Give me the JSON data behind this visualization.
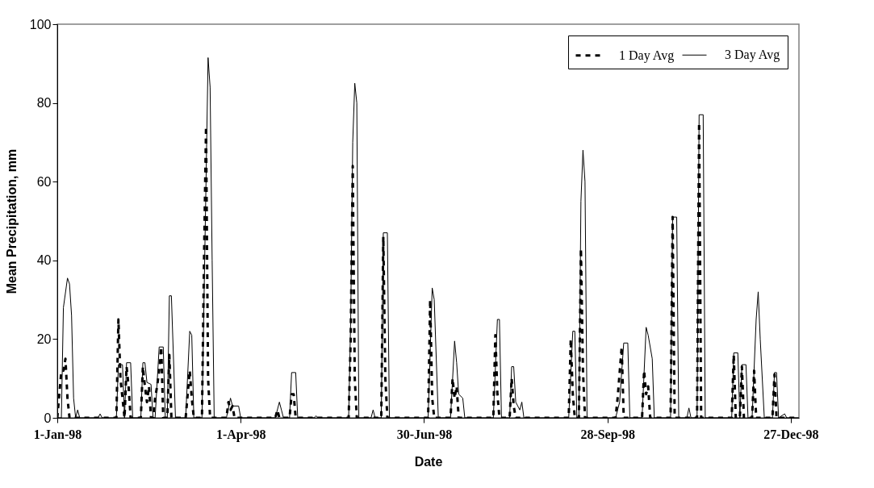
{
  "chart_data": {
    "type": "line",
    "xlabel": "Date",
    "ylabel": "Mean Precipitation, mm",
    "xlim": [
      "1998-01-01",
      "1998-12-31"
    ],
    "xticks": [
      {
        "value": "1998-01-01",
        "label": "1-Jan-98"
      },
      {
        "value": "1998-04-01",
        "label": "1-Apr-98"
      },
      {
        "value": "1998-06-30",
        "label": "30-Jun-98"
      },
      {
        "value": "1998-09-28",
        "label": "28-Sep-98"
      },
      {
        "value": "1998-12-27",
        "label": "27-Dec-98"
      }
    ],
    "ylim": [
      0,
      100
    ],
    "yticks": [
      0,
      20,
      40,
      60,
      80,
      100
    ],
    "grid": false,
    "legend": "top right",
    "series": [
      {
        "name": "1 Day Avg",
        "color": "#000000",
        "line_style": "dashed",
        "x": [
          "1998-01-01",
          "1998-01-03",
          "1998-01-04",
          "1998-01-05",
          "1998-01-06",
          "1998-01-07",
          "1998-01-30",
          "1998-01-31",
          "1998-02-01",
          "1998-02-02",
          "1998-02-03",
          "1998-02-04",
          "1998-02-05",
          "1998-02-06",
          "1998-02-11",
          "1998-02-12",
          "1998-02-13",
          "1998-02-14",
          "1998-02-15",
          "1998-02-16",
          "1998-02-17",
          "1998-02-18",
          "1998-02-19",
          "1998-02-20",
          "1998-02-21",
          "1998-02-22",
          "1998-02-24",
          "1998-02-25",
          "1998-02-26",
          "1998-03-05",
          "1998-03-06",
          "1998-03-07",
          "1998-03-08",
          "1998-03-09",
          "1998-03-13",
          "1998-03-14",
          "1998-03-15",
          "1998-03-16",
          "1998-03-17",
          "1998-03-25",
          "1998-03-26",
          "1998-03-27",
          "1998-03-28",
          "1998-03-29",
          "1998-04-18",
          "1998-04-19",
          "1998-04-20",
          "1998-04-25",
          "1998-04-26",
          "1998-04-27",
          "1998-04-28",
          "1998-05-24",
          "1998-05-25",
          "1998-05-26",
          "1998-05-27",
          "1998-05-28",
          "1998-06-09",
          "1998-06-10",
          "1998-06-11",
          "1998-06-12",
          "1998-07-02",
          "1998-07-03",
          "1998-07-04",
          "1998-07-05",
          "1998-07-13",
          "1998-07-14",
          "1998-07-15",
          "1998-07-16",
          "1998-07-17",
          "1998-08-03",
          "1998-08-04",
          "1998-08-05",
          "1998-08-06",
          "1998-08-11",
          "1998-08-12",
          "1998-08-13",
          "1998-08-14",
          "1998-09-09",
          "1998-09-10",
          "1998-09-11",
          "1998-09-12",
          "1998-09-14",
          "1998-09-15",
          "1998-09-16",
          "1998-09-17",
          "1998-10-02",
          "1998-10-03",
          "1998-10-05",
          "1998-10-06",
          "1998-10-15",
          "1998-10-16",
          "1998-10-17",
          "1998-10-18",
          "1998-10-19",
          "1998-10-29",
          "1998-10-30",
          "1998-10-31",
          "1998-11-11",
          "1998-11-12",
          "1998-11-13",
          "1998-11-28",
          "1998-11-29",
          "1998-11-30",
          "1998-12-02",
          "1998-12-03",
          "1998-12-04",
          "1998-12-08",
          "1998-12-09",
          "1998-12-10",
          "1998-12-18",
          "1998-12-19",
          "1998-12-20",
          "1998-12-31"
        ],
        "values": [
          0,
          12,
          12,
          15,
          5,
          0,
          0,
          25,
          10,
          5,
          0,
          13,
          8,
          0,
          0,
          13,
          8,
          4,
          8,
          0,
          0,
          5,
          8,
          12,
          18,
          0,
          0,
          16,
          0,
          0,
          6,
          12,
          5,
          0,
          0,
          40,
          74,
          10,
          0,
          0,
          4,
          2,
          3,
          0,
          0,
          2,
          0,
          0,
          6,
          6,
          0,
          0,
          20,
          64,
          10,
          0,
          0,
          46,
          10,
          0,
          0,
          30,
          5,
          0,
          0,
          10,
          5,
          8,
          0,
          0,
          21,
          6,
          0,
          0,
          10,
          3,
          0,
          0,
          20,
          6,
          0,
          0,
          43,
          12,
          0,
          0,
          5,
          18,
          0,
          0,
          12,
          6,
          8,
          0,
          0,
          51,
          0,
          0,
          75,
          0,
          0,
          16,
          0,
          0,
          13,
          0,
          0,
          12,
          0,
          0,
          11,
          0,
          0
        ]
      },
      {
        "name": "3 Day Avg",
        "color": "#000000",
        "line_style": "solid",
        "x": [
          "1998-01-01",
          "1998-01-03",
          "1998-01-04",
          "1998-01-06",
          "1998-01-07",
          "1998-01-08",
          "1998-01-09",
          "1998-01-10",
          "1998-01-11",
          "1998-01-12",
          "1998-01-21",
          "1998-01-22",
          "1998-01-23",
          "1998-01-30",
          "1998-01-31",
          "1998-02-02",
          "1998-02-03",
          "1998-02-04",
          "1998-02-06",
          "1998-02-07",
          "1998-02-11",
          "1998-02-12",
          "1998-02-13",
          "1998-02-14",
          "1998-02-16",
          "1998-02-17",
          "1998-02-18",
          "1998-02-20",
          "1998-02-22",
          "1998-02-23",
          "1998-02-24",
          "1998-02-25",
          "1998-02-26",
          "1998-02-28",
          "1998-03-05",
          "1998-03-07",
          "1998-03-08",
          "1998-03-09",
          "1998-03-13",
          "1998-03-14",
          "1998-03-15",
          "1998-03-16",
          "1998-03-17",
          "1998-03-18",
          "1998-03-19",
          "1998-03-25",
          "1998-03-27",
          "1998-03-28",
          "1998-03-31",
          "1998-04-01",
          "1998-04-18",
          "1998-04-20",
          "1998-04-21",
          "1998-04-22",
          "1998-04-25",
          "1998-04-26",
          "1998-04-28",
          "1998-04-29",
          "1998-05-07",
          "1998-05-08",
          "1998-05-09",
          "1998-05-24",
          "1998-05-25",
          "1998-05-26",
          "1998-05-27",
          "1998-05-28",
          "1998-05-29",
          "1998-06-04",
          "1998-06-05",
          "1998-06-06",
          "1998-06-09",
          "1998-06-10",
          "1998-06-12",
          "1998-06-13",
          "1998-07-02",
          "1998-07-04",
          "1998-07-05",
          "1998-07-07",
          "1998-07-13",
          "1998-07-15",
          "1998-07-16",
          "1998-07-17",
          "1998-07-19",
          "1998-07-20",
          "1998-08-03",
          "1998-08-05",
          "1998-08-06",
          "1998-08-07",
          "1998-08-11",
          "1998-08-12",
          "1998-08-13",
          "1998-08-14",
          "1998-08-16",
          "1998-08-17",
          "1998-08-18",
          "1998-09-09",
          "1998-09-11",
          "1998-09-12",
          "1998-09-13",
          "1998-09-14",
          "1998-09-15",
          "1998-09-16",
          "1998-09-17",
          "1998-09-18",
          "1998-10-02",
          "1998-10-04",
          "1998-10-06",
          "1998-10-08",
          "1998-10-09",
          "1998-10-15",
          "1998-10-17",
          "1998-10-18",
          "1998-10-20",
          "1998-10-21",
          "1998-10-29",
          "1998-10-30",
          "1998-11-01",
          "1998-11-02",
          "1998-11-06",
          "1998-11-07",
          "1998-11-08",
          "1998-11-11",
          "1998-11-12",
          "1998-11-14",
          "1998-11-15",
          "1998-11-28",
          "1998-11-29",
          "1998-12-01",
          "1998-12-02",
          "1998-12-03",
          "1998-12-05",
          "1998-12-06",
          "1998-12-08",
          "1998-12-10",
          "1998-12-11",
          "1998-12-12",
          "1998-12-14",
          "1998-12-18",
          "1998-12-19",
          "1998-12-20",
          "1998-12-21",
          "1998-12-24",
          "1998-12-25",
          "1998-12-31"
        ],
        "values": [
          0,
          0,
          28,
          35.5,
          34,
          26,
          5,
          0,
          2,
          0,
          0,
          1,
          0,
          0,
          13.5,
          13.5,
          0,
          14,
          14,
          0,
          0,
          14,
          14,
          9,
          8.5,
          0,
          0,
          18,
          18,
          0,
          0,
          31,
          31,
          0,
          0,
          22,
          21,
          0,
          0,
          30,
          60,
          91.5,
          84,
          40,
          0,
          0,
          5,
          3,
          3,
          0,
          0,
          4,
          2,
          0,
          0,
          11.5,
          11.5,
          0,
          0,
          0.5,
          0,
          0,
          25,
          70,
          85,
          80,
          0,
          0,
          2,
          0,
          0,
          47,
          47,
          0,
          0,
          33,
          30,
          0,
          0,
          19.5,
          14,
          6,
          5,
          0,
          0,
          25,
          25,
          0,
          0,
          13,
          13,
          4,
          2,
          4,
          0,
          0,
          22,
          22,
          0,
          0,
          55,
          68,
          60,
          0,
          0,
          4,
          19,
          19,
          0,
          0,
          23,
          21,
          15,
          0,
          0,
          51,
          51,
          0,
          0,
          2.5,
          0,
          0,
          77,
          77,
          0,
          0,
          16.5,
          16.5,
          0,
          13.5,
          13.5,
          0,
          0,
          25,
          32,
          20,
          0,
          0,
          11.5,
          11.5,
          0,
          1,
          0,
          0
        ]
      }
    ]
  }
}
